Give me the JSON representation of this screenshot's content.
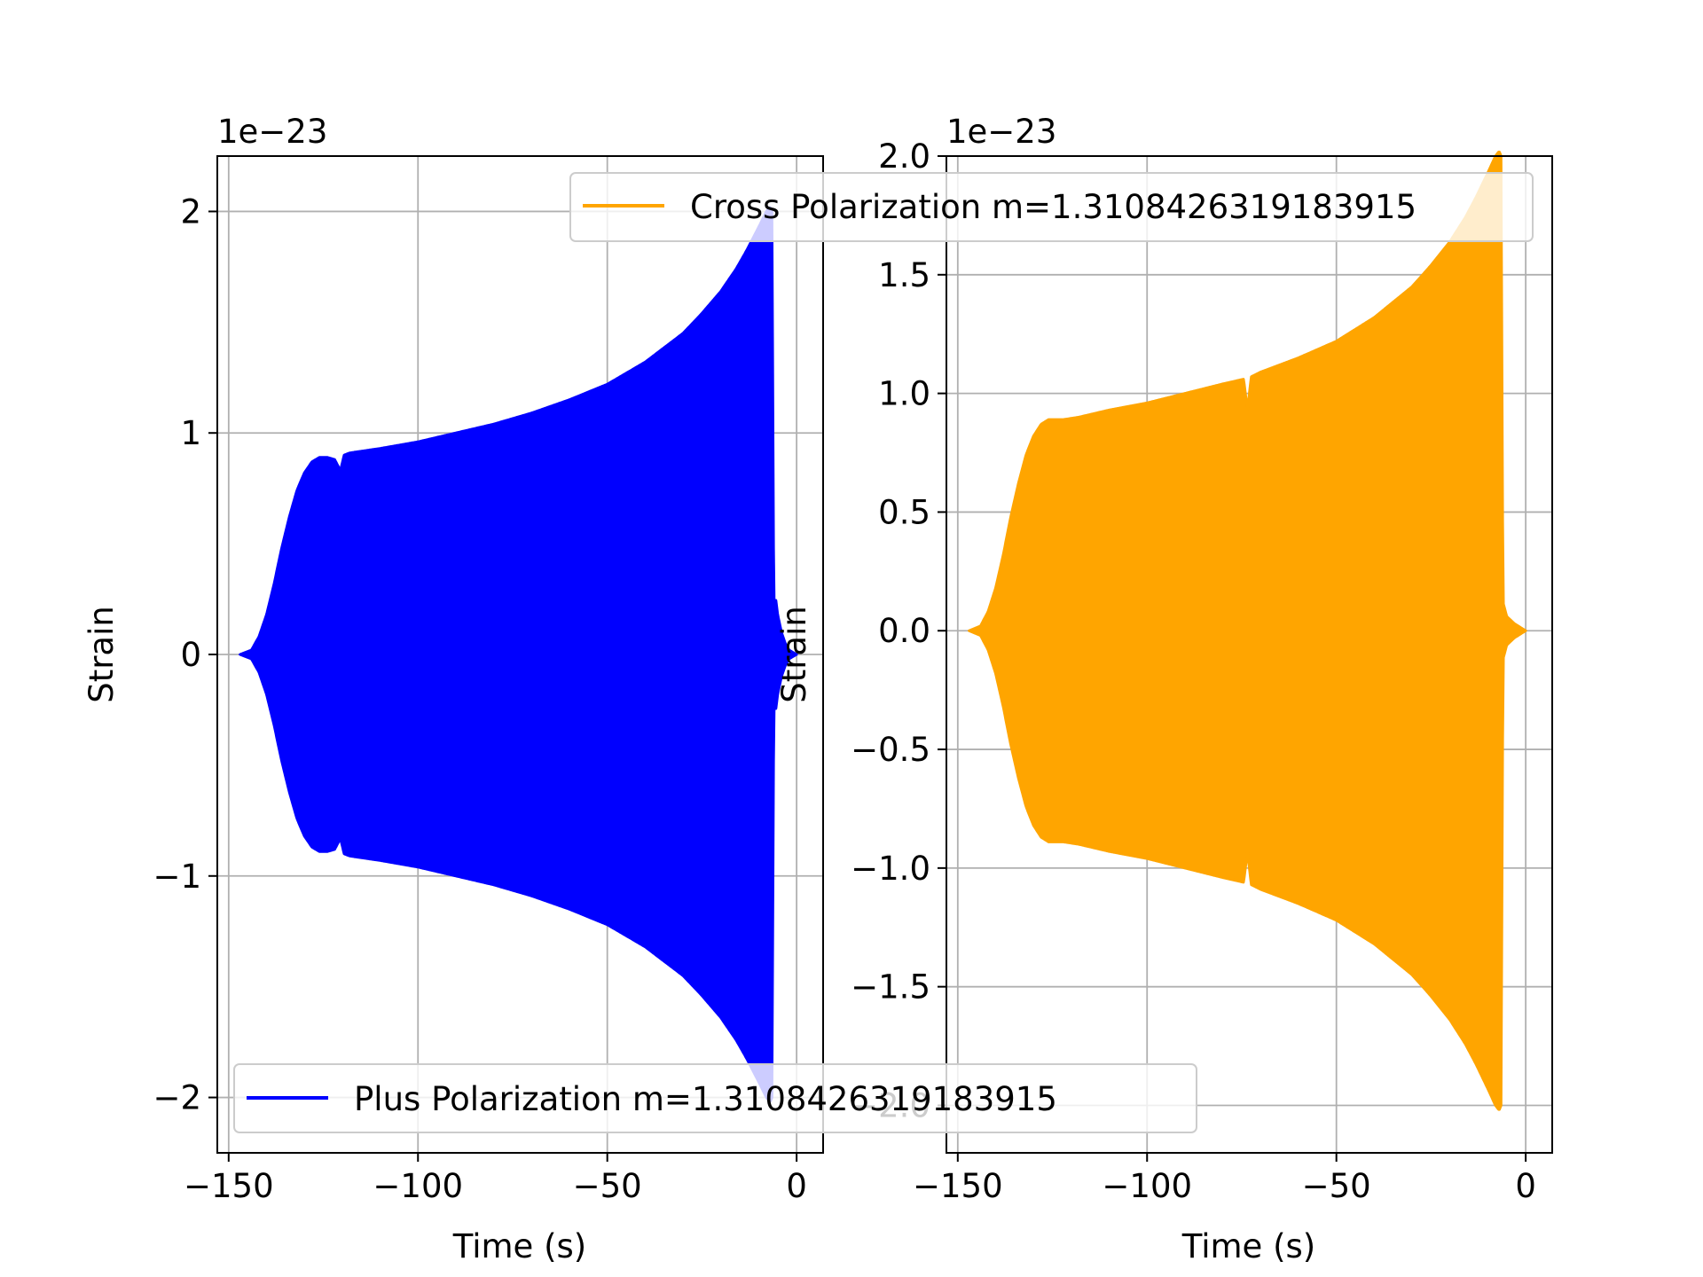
{
  "chart_data": [
    {
      "type": "line",
      "id": "plus",
      "offset_text": "1e−23",
      "xlabel": "Time (s)",
      "ylabel": "Strain",
      "xlim": [
        -153,
        7
      ],
      "ylim": [
        -2.25,
        2.25
      ],
      "xticks": [
        -150,
        -100,
        -50,
        0
      ],
      "xtick_labels": [
        "−150",
        "−100",
        "−50",
        "0"
      ],
      "yticks": [
        -2,
        -1,
        0,
        1,
        2
      ],
      "ytick_labels": [
        "−2",
        "−1",
        "0",
        "1",
        "2"
      ],
      "grid": true,
      "legend_position": "lower-left",
      "series": [
        {
          "name": "Plus Polarization m=1.3108426319183915",
          "color": "#0000ff",
          "envelope_x": [
            -147,
            -144,
            -142,
            -140,
            -138,
            -136,
            -134,
            -132,
            -130,
            -128,
            -126,
            -124,
            -122,
            -120.5,
            -119.5,
            -118,
            -110,
            -100,
            -90,
            -80,
            -70,
            -60,
            -50,
            -40,
            -30,
            -25,
            -20,
            -16,
            -13,
            -10,
            -8,
            -7,
            -6.5,
            -6,
            -5.5,
            -5,
            -4,
            -3,
            -2,
            -1,
            0
          ],
          "envelope_amp": [
            0.0,
            0.02,
            0.08,
            0.18,
            0.32,
            0.48,
            0.62,
            0.74,
            0.82,
            0.87,
            0.89,
            0.89,
            0.88,
            0.83,
            0.9,
            0.91,
            0.93,
            0.96,
            1.0,
            1.04,
            1.09,
            1.15,
            1.22,
            1.32,
            1.45,
            1.54,
            1.64,
            1.74,
            1.83,
            1.93,
            2.0,
            2.02,
            2.0,
            0.15,
            0.25,
            0.18,
            0.1,
            0.05,
            0.02,
            0.01,
            0.0
          ]
        }
      ]
    },
    {
      "type": "line",
      "id": "cross",
      "offset_text": "1e−23",
      "xlabel": "Time (s)",
      "ylabel": "Strain",
      "xlim": [
        -153,
        7
      ],
      "ylim": [
        -2.2,
        2.0
      ],
      "xticks": [
        -150,
        -100,
        -50,
        0
      ],
      "xtick_labels": [
        "−150",
        "−100",
        "−50",
        "0"
      ],
      "yticks": [
        -2.0,
        -1.5,
        -1.0,
        -0.5,
        0.0,
        0.5,
        1.0,
        1.5,
        2.0
      ],
      "ytick_labels": [
        "−2.0",
        "−1.5",
        "−1.0",
        "−0.5",
        "0.0",
        "0.5",
        "1.0",
        "1.5",
        "2.0"
      ],
      "grid": true,
      "legend_position": "upper-right",
      "series": [
        {
          "name": "Cross Polarization m=1.3108426319183915",
          "color": "#ffa500",
          "envelope_x": [
            -147,
            -144,
            -142,
            -140,
            -138,
            -136,
            -134,
            -132,
            -130,
            -128,
            -126,
            -124,
            -122,
            -118,
            -110,
            -100,
            -90,
            -80,
            -74.5,
            -73.5,
            -72.5,
            -70,
            -60,
            -50,
            -40,
            -30,
            -25,
            -20,
            -16,
            -13,
            -10,
            -8,
            -7,
            -6.5,
            -6,
            -5,
            -3,
            -1,
            0
          ],
          "envelope_amp": [
            0.0,
            0.02,
            0.08,
            0.18,
            0.32,
            0.48,
            0.62,
            0.74,
            0.82,
            0.87,
            0.89,
            0.89,
            0.89,
            0.9,
            0.93,
            0.96,
            1.0,
            1.04,
            1.06,
            0.93,
            1.07,
            1.09,
            1.15,
            1.22,
            1.32,
            1.45,
            1.54,
            1.64,
            1.74,
            1.83,
            1.93,
            2.0,
            2.02,
            2.0,
            0.12,
            0.06,
            0.03,
            0.01,
            0.0
          ]
        }
      ]
    }
  ]
}
